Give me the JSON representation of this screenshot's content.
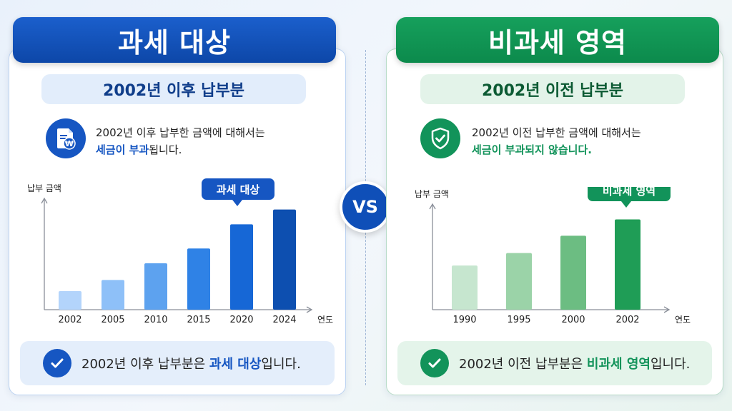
{
  "vs_label": "VS",
  "left": {
    "header": "과세 대상",
    "subtitle": "2002년 이후 납부분",
    "icon": "document-won-icon",
    "desc_line1": "2002년 이후 납부한 금액에 대해서는",
    "desc_highlight": "세금이 부과",
    "desc_tail": "됩니다.",
    "footer_pre": "2002년 이후 납부분은 ",
    "footer_highlight": "과세 대상",
    "footer_post": "입니다.",
    "accent": "#1656c2"
  },
  "right": {
    "header": "비과세 영역",
    "subtitle": "2002년 이전 납부분",
    "icon": "shield-check-icon",
    "desc_line1": "2002년 이전 납부한 금액에 대해서는",
    "desc_highlight": "세금이 부과되지 않습니다.",
    "desc_tail": "",
    "footer_pre": "2002년 이전 납부분은 ",
    "footer_highlight": "비과세 영역",
    "footer_post": "입니다.",
    "accent": "#12935a"
  },
  "chart_data": [
    {
      "type": "bar",
      "ylabel": "납부 금액",
      "xlabel": "연도",
      "categories": [
        "2002",
        "2005",
        "2010",
        "2015",
        "2020",
        "2024"
      ],
      "values": [
        2,
        3.2,
        5,
        6.6,
        9.2,
        10.8
      ],
      "ylim": [
        0,
        12
      ],
      "callout": "과세 대상",
      "colors": [
        "#b3d4fb",
        "#8ec0f8",
        "#5da2ef",
        "#2f82e6",
        "#1667d6",
        "#0d4fb0"
      ]
    },
    {
      "type": "bar",
      "ylabel": "납부 금액",
      "xlabel": "연도",
      "categories": [
        "1990",
        "1995",
        "2000",
        "2002"
      ],
      "values": [
        4.6,
        5.9,
        7.7,
        9.4
      ],
      "ylim": [
        0,
        11
      ],
      "callout": "비과세 영역",
      "colors": [
        "#c6e6cf",
        "#9bd3a8",
        "#6cbd82",
        "#1f9d56"
      ]
    }
  ]
}
